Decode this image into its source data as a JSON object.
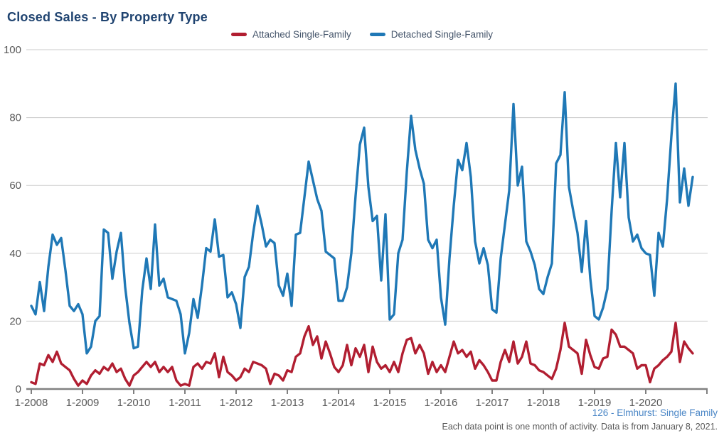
{
  "title": "Closed Sales - By Property Type",
  "legend": [
    {
      "id": "attached",
      "label": "Attached Single-Family",
      "color": "#b11e31"
    },
    {
      "id": "detached",
      "label": "Detached Single-Family",
      "color": "#1f78b6"
    }
  ],
  "footer": {
    "source": "126 - Elmhurst: Single Family",
    "note": "Each data point is one month of activity. Data is from January 8, 2021."
  },
  "chart_data": {
    "type": "line",
    "title": "Closed Sales - By Property Type",
    "x_unit": "month",
    "x_start": "1-2008",
    "x_end": "12-2020",
    "points_per_series": 156,
    "xtick_labels": [
      "1-2008",
      "1-2009",
      "1-2010",
      "1-2011",
      "1-2012",
      "1-2013",
      "1-2014",
      "1-2015",
      "1-2016",
      "1-2017",
      "1-2018",
      "1-2019",
      "1-2020"
    ],
    "ytick_values": [
      0,
      20,
      40,
      60,
      80,
      100
    ],
    "ylim": [
      0,
      100
    ],
    "grid": "horizontal",
    "legend_position": "top",
    "series": [
      {
        "name": "Attached Single-Family",
        "color": "#b11e31",
        "values": [
          2,
          1.5,
          7.5,
          7,
          10,
          8,
          11,
          7.5,
          6.5,
          5.5,
          3,
          1,
          2.5,
          1.5,
          4,
          5.5,
          4.5,
          6.5,
          5.5,
          7.5,
          5,
          6,
          3,
          1,
          4,
          5,
          6.5,
          8,
          6.5,
          8,
          5,
          6.5,
          5,
          6.5,
          2.5,
          1,
          1.5,
          1,
          6.5,
          7.5,
          6,
          8,
          7.5,
          10.5,
          3.5,
          9.5,
          5,
          4,
          2.5,
          3.5,
          6,
          5,
          8,
          7.5,
          7,
          6,
          1.5,
          4.5,
          4,
          2.5,
          5.5,
          5,
          9.5,
          10.5,
          15.5,
          18.5,
          13,
          15.5,
          9,
          14,
          10.5,
          6.5,
          5,
          7,
          13,
          7,
          12,
          9.5,
          13,
          5,
          12.5,
          8,
          6,
          7,
          5,
          8,
          5,
          10.5,
          14.5,
          15,
          10.5,
          13,
          10.5,
          4.5,
          8,
          5,
          7,
          5,
          9.5,
          14,
          10.5,
          11.5,
          9.5,
          11,
          6,
          8.5,
          7,
          5,
          2.5,
          2.5,
          8,
          11.5,
          8,
          14,
          7.5,
          9.5,
          14,
          7.5,
          7,
          5.5,
          5,
          4,
          3,
          6,
          11.5,
          19.5,
          12.5,
          11.5,
          10.5,
          4.5,
          14.5,
          10,
          6.5,
          6,
          9,
          9.5,
          17.5,
          16,
          12.5,
          12.5,
          11.5,
          10.5,
          6,
          7,
          7,
          2,
          6,
          7,
          8.5,
          9.5,
          11,
          19.5,
          8,
          14,
          12,
          10.5
        ]
      },
      {
        "name": "Detached Single-Family",
        "color": "#1f78b6",
        "values": [
          24.5,
          22,
          31.5,
          23,
          36,
          45.5,
          42.5,
          44.5,
          35,
          24.5,
          23,
          25,
          22,
          10.5,
          12.5,
          20,
          21.5,
          47,
          46,
          32.5,
          40.5,
          46,
          30,
          19.5,
          12,
          12.5,
          29,
          38.5,
          29.5,
          48.5,
          30.5,
          32.5,
          27,
          26.5,
          26,
          22,
          10.5,
          16.5,
          26.5,
          21,
          30.5,
          41.5,
          40.5,
          50,
          39,
          39.5,
          27,
          28.5,
          25,
          18,
          33,
          36,
          46,
          54,
          48.5,
          42,
          44,
          43,
          30.5,
          27.5,
          34,
          24.5,
          45.5,
          46,
          56.5,
          67,
          61.5,
          56,
          52.5,
          40.5,
          39.5,
          38.5,
          26,
          26,
          30,
          40,
          57,
          72,
          77,
          59.5,
          49.5,
          51,
          32,
          51.5,
          20.5,
          22,
          40,
          44,
          64,
          80.5,
          70.5,
          65,
          60.5,
          44,
          41.5,
          44,
          27,
          19,
          38.5,
          54,
          67.5,
          64.5,
          72.5,
          62.5,
          43.5,
          37,
          41.5,
          36.5,
          23.5,
          22.5,
          38.5,
          48.5,
          58.5,
          84,
          60,
          65.5,
          43.5,
          40.5,
          36.5,
          29.5,
          28,
          33,
          37,
          66.5,
          69,
          87.5,
          59.5,
          52.5,
          46,
          34.5,
          49.5,
          32.5,
          21.5,
          20.5,
          24,
          29.5,
          52.5,
          72.5,
          56.5,
          72.5,
          50.5,
          43.5,
          45.5,
          41.5,
          40,
          39.5,
          27.5,
          46,
          42,
          56,
          74.5,
          90,
          55,
          65,
          54,
          62.5
        ]
      }
    ]
  }
}
